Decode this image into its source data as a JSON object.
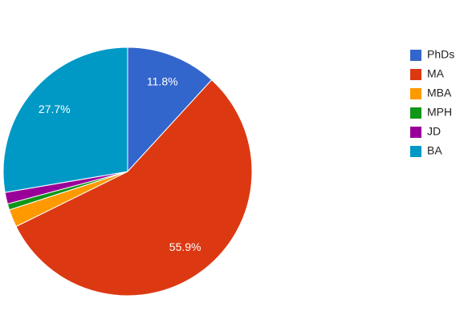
{
  "chart_data": {
    "type": "pie",
    "categories": [
      "PhDs",
      "MA",
      "MBA",
      "MPH",
      "JD",
      "BA"
    ],
    "values": [
      11.8,
      55.9,
      2.3,
      0.8,
      1.5,
      27.7
    ],
    "value_labels": [
      "11.8%",
      "55.9%",
      null,
      null,
      null,
      "27.7%"
    ],
    "colors": [
      "#3366cc",
      "#dc3912",
      "#ff9900",
      "#109618",
      "#990099",
      "#0099c6"
    ],
    "legend": "right"
  }
}
